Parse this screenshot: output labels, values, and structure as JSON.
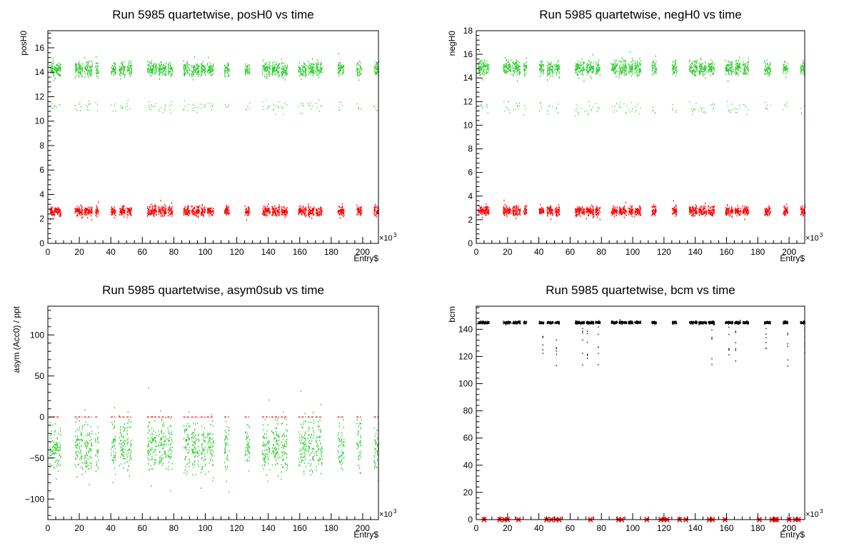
{
  "chart_data": [
    {
      "type": "scatter",
      "title": "Run 5985 quartetwise, posH0 vs time",
      "xlabel": "Entry$",
      "ylabel": "posH0",
      "x_exponent_label": "×10",
      "x_exponent": "3",
      "xlim": [
        0,
        210
      ],
      "ylim": [
        0,
        17.4
      ],
      "x_ticks": [
        0,
        20,
        40,
        60,
        80,
        100,
        120,
        140,
        160,
        180,
        200
      ],
      "y_ticks": [
        0,
        2,
        4,
        6,
        8,
        10,
        12,
        14,
        16
      ],
      "series": [
        {
          "color": "#33cc33",
          "bands": [
            {
              "center": 14.3,
              "half_width": 1.0
            },
            {
              "center": 11.2,
              "half_width": 0.9
            }
          ]
        },
        {
          "color": "#ff0000",
          "bands": [
            {
              "center": 2.7,
              "half_width": 0.7
            }
          ]
        }
      ]
    },
    {
      "type": "scatter",
      "title": "Run 5985 quartetwise, negH0 vs time",
      "xlabel": "Entry$",
      "ylabel": "negH0",
      "x_exponent_label": "×10",
      "x_exponent": "3",
      "xlim": [
        0,
        210
      ],
      "ylim": [
        0,
        18
      ],
      "x_ticks": [
        0,
        20,
        40,
        60,
        80,
        100,
        120,
        140,
        160,
        180,
        200
      ],
      "y_ticks": [
        0,
        2,
        4,
        6,
        8,
        10,
        12,
        14,
        16,
        18
      ],
      "series": [
        {
          "color": "#33cc33",
          "bands": [
            {
              "center": 14.9,
              "half_width": 1.1
            },
            {
              "center": 11.5,
              "half_width": 1.0
            }
          ]
        },
        {
          "color": "#ff0000",
          "bands": [
            {
              "center": 2.8,
              "half_width": 0.7
            }
          ]
        }
      ]
    },
    {
      "type": "scatter",
      "title": "Run 5985 quartetwise, asym0sub vs time",
      "xlabel": "Entry$",
      "ylabel": "asym (Acc0) / ppt",
      "x_exponent_label": "×10",
      "x_exponent": "3",
      "xlim": [
        0,
        210
      ],
      "ylim": [
        -125,
        135
      ],
      "x_ticks": [
        0,
        20,
        40,
        60,
        80,
        100,
        120,
        140,
        160,
        180,
        200
      ],
      "y_ticks": [
        -100,
        -50,
        0,
        50,
        100
      ],
      "series": [
        {
          "color": "#33cc33",
          "bands": [
            {
              "center": -35,
              "half_width": 55
            }
          ]
        },
        {
          "color": "#ff0000",
          "line_at": 0
        }
      ]
    },
    {
      "type": "scatter",
      "title": "Run 5985 quartetwise, bcm vs time",
      "xlabel": "Entry$",
      "ylabel": "bcm",
      "x_exponent_label": "×10",
      "x_exponent": "3",
      "xlim": [
        0,
        210
      ],
      "ylim": [
        0,
        157
      ],
      "x_ticks": [
        0,
        20,
        40,
        60,
        80,
        100,
        120,
        140,
        160,
        180,
        200
      ],
      "y_ticks": [
        0,
        20,
        40,
        60,
        80,
        100,
        120,
        140
      ],
      "series": [
        {
          "color": "#000000",
          "bands": [
            {
              "center": 145.5,
              "half_width": 1.5
            }
          ]
        },
        {
          "color": "#ff0000",
          "markers_at_y": 0,
          "marker_x": [
            5,
            15,
            18,
            20,
            27,
            45,
            48,
            51,
            53,
            73,
            91,
            93,
            109,
            118,
            120,
            122,
            130,
            134,
            149,
            151,
            159,
            181,
            189,
            191,
            192,
            200,
            204,
            206
          ]
        }
      ]
    }
  ],
  "run_blocks": [
    [
      1,
      8
    ],
    [
      17,
      22
    ],
    [
      23,
      28
    ],
    [
      30,
      32
    ],
    [
      40,
      43
    ],
    [
      45,
      49
    ],
    [
      50,
      53
    ],
    [
      63,
      69
    ],
    [
      70,
      75
    ],
    [
      76,
      79
    ],
    [
      86,
      90
    ],
    [
      91,
      96
    ],
    [
      97,
      100
    ],
    [
      101,
      105
    ],
    [
      112,
      115
    ],
    [
      125,
      128
    ],
    [
      136,
      141
    ],
    [
      142,
      147
    ],
    [
      148,
      152
    ],
    [
      159,
      164
    ],
    [
      165,
      169
    ],
    [
      170,
      174
    ],
    [
      184,
      188
    ],
    [
      196,
      199
    ],
    [
      207,
      210
    ]
  ]
}
